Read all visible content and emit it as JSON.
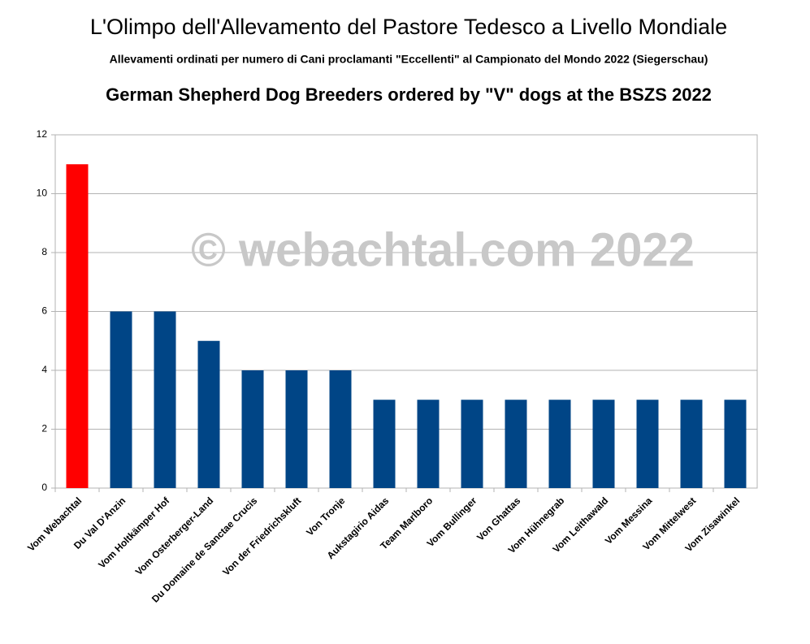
{
  "chart_data": {
    "type": "bar",
    "title": "L'Olimpo dell'Allevamento del Pastore Tedesco a Livello Mondiale",
    "subtitle": "Allevamenti ordinati per numero di Cani proclamanti \"Eccellenti\" al Campionato del Mondo 2022 (Siegerschau)",
    "heading": "German Shepherd Dog Breeders ordered by \"V\" dogs at the BSZS 2022",
    "watermark": "© webachtal.com 2022",
    "categories": [
      "Vom Webachtal",
      "Du Val D'Anzin",
      "Vom Holtkämper Hof",
      "Vom Osterberger-Land",
      "Du Domaine de Sanctae Crucis",
      "Von der Friedrichskluft",
      "Von Tronje",
      "Aukstagirio Aidas",
      "Team Marlboro",
      "Vom Bullinger",
      "Von Ghattas",
      "Vom Hühnegrab",
      "Vom Leithawald",
      "Vom Messina",
      "Vom Mittelwest",
      "Vom Zisawinkel"
    ],
    "values": [
      11,
      6,
      6,
      5,
      4,
      4,
      4,
      3,
      3,
      3,
      3,
      3,
      3,
      3,
      3,
      3
    ],
    "colors": [
      "#ff0000",
      "#004586",
      "#004586",
      "#004586",
      "#004586",
      "#004586",
      "#004586",
      "#004586",
      "#004586",
      "#004586",
      "#004586",
      "#004586",
      "#004586",
      "#004586",
      "#004586",
      "#004586"
    ],
    "ylim": [
      0,
      12
    ],
    "yticks": [
      0,
      2,
      4,
      6,
      8,
      10,
      12
    ],
    "grid": true
  }
}
